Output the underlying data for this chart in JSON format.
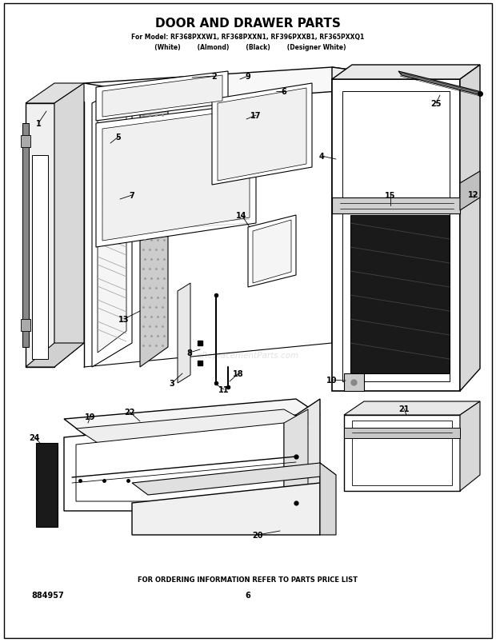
{
  "title": "DOOR AND DRAWER PARTS",
  "subtitle_line1": "For Model: RF368PXXW1, RF368PXXN1, RF396PXXB1, RF365PXXQ1",
  "subtitle_line2": "  (White)        (Almond)        (Black)        (Designer White)",
  "footer_line1": "FOR ORDERING INFORMATION REFER TO PARTS PRICE LIST",
  "footer_line2": "884957",
  "footer_page": "6",
  "bg_color": "#ffffff",
  "text_color": "#000000",
  "watermark": "eReplacementParts.com"
}
